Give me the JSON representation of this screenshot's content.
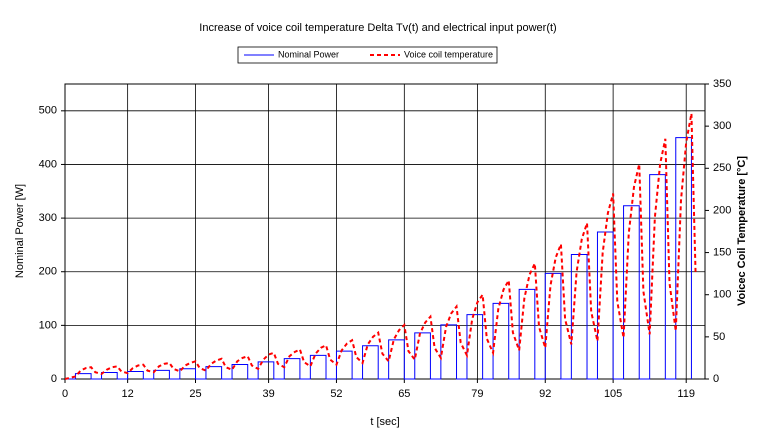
{
  "chart_data": {
    "type": "line",
    "title": "Increase of voice coil temperature Delta Tv(t) and electrical input power(t)",
    "xlabel": "t [sec]",
    "ylabel": "Nominal Power [W]",
    "y2label": "Voicec Coil Temperature [°C]",
    "xlim": [
      0,
      122.6
    ],
    "xticks": [
      0,
      12,
      25,
      39,
      52,
      65,
      79,
      92,
      105,
      119
    ],
    "ylim": [
      0,
      550
    ],
    "yticks": [
      0,
      100,
      200,
      300,
      400,
      500
    ],
    "y2lim": [
      0,
      350
    ],
    "y2ticks": [
      0,
      50,
      100,
      150,
      200,
      250,
      300,
      350
    ],
    "grid": true,
    "legend": "top",
    "series": [
      {
        "name": "Nominal Power",
        "color": "#0000ff",
        "dash": "solid",
        "x": [
          0,
          2,
          2,
          5,
          5,
          7,
          7,
          10,
          10,
          12,
          12,
          15,
          15,
          17,
          17,
          20,
          20,
          22,
          22,
          25,
          25,
          27,
          27,
          30,
          30,
          32,
          32,
          35,
          35,
          37,
          37,
          40,
          40,
          42,
          42,
          45,
          45,
          47,
          47,
          50,
          50,
          52,
          52,
          55,
          55,
          57,
          57,
          60,
          60,
          62,
          62,
          65,
          65,
          67,
          67,
          70,
          70,
          72,
          72,
          75,
          75,
          77,
          77,
          80,
          80,
          82,
          82,
          85,
          85,
          87,
          87,
          90,
          90,
          92,
          92,
          95,
          95,
          97,
          97,
          100,
          100,
          102,
          102,
          105,
          105,
          107,
          107,
          110,
          110,
          112,
          112,
          115,
          115,
          117,
          117,
          120,
          120
        ],
        "values": [
          0,
          0,
          10,
          10,
          0,
          0,
          12,
          12,
          0,
          0,
          14,
          14,
          0,
          0,
          16,
          16,
          0,
          0,
          19,
          19,
          0,
          0,
          23,
          23,
          0,
          0,
          27,
          27,
          0,
          0,
          32,
          32,
          0,
          0,
          38,
          38,
          0,
          0,
          44,
          44,
          0,
          0,
          52,
          52,
          0,
          0,
          62,
          62,
          0,
          0,
          73,
          73,
          0,
          0,
          86,
          86,
          0,
          0,
          101,
          101,
          0,
          0,
          120,
          120,
          0,
          0,
          141,
          141,
          0,
          0,
          167,
          167,
          0,
          0,
          197,
          197,
          0,
          0,
          232,
          232,
          0,
          0,
          274,
          274,
          0,
          0,
          323,
          323,
          0,
          0,
          381,
          381,
          0,
          0,
          450,
          450,
          0
        ]
      },
      {
        "name": "Voice coil temperature",
        "color": "#ff0000",
        "dash": "dotted",
        "axis": "y2",
        "x": [
          0,
          2,
          3,
          4,
          5,
          5.8,
          7,
          8,
          9,
          10,
          10.8,
          12,
          13,
          14,
          15,
          15.8,
          17,
          18,
          19,
          20,
          20.8,
          22,
          23,
          24,
          25,
          25.8,
          27,
          28,
          29,
          30,
          30.8,
          32,
          33,
          34,
          35,
          35.8,
          37,
          38,
          39,
          40,
          40.8,
          42,
          43,
          44,
          45,
          45.8,
          47,
          48,
          49,
          50,
          50.8,
          52,
          53,
          54,
          55,
          55.8,
          57,
          58,
          59,
          60,
          60.8,
          62,
          63,
          64,
          65,
          65.8,
          67,
          68,
          69,
          70,
          70.8,
          72,
          73,
          74,
          75,
          75.8,
          77,
          78,
          79,
          80,
          80.8,
          82,
          83,
          84,
          85,
          85.8,
          87,
          88,
          89,
          90,
          90.8,
          92,
          93,
          94,
          95,
          95.8,
          97,
          98,
          99,
          100,
          100.8,
          102,
          103,
          104,
          105,
          105.8,
          107,
          108,
          109,
          110,
          110.8,
          112,
          113,
          114,
          115,
          115.8,
          117,
          118,
          119,
          120,
          120.8
        ],
        "values": [
          0,
          3,
          10,
          13,
          14,
          8,
          6,
          11,
          14,
          15,
          9,
          7,
          13,
          16,
          17,
          10,
          8,
          15,
          18,
          19,
          12,
          9,
          16,
          19,
          21,
          13,
          10,
          18,
          22,
          24,
          14,
          11,
          21,
          25,
          27,
          16,
          12,
          23,
          29,
          31,
          18,
          14,
          27,
          32,
          35,
          20,
          15,
          30,
          37,
          40,
          23,
          17,
          34,
          42,
          46,
          26,
          19,
          41,
          50,
          55,
          30,
          21,
          47,
          58,
          64,
          33,
          23,
          54,
          67,
          74,
          37,
          25,
          62,
          78,
          86,
          43,
          28,
          71,
          91,
          100,
          48,
          31,
          83,
          106,
          117,
          55,
          34,
          96,
          124,
          137,
          62,
          37,
          111,
          144,
          160,
          71,
          41,
          127,
          166,
          185,
          80,
          45,
          150,
          197,
          220,
          92,
          49,
          173,
          228,
          255,
          104,
          53,
          192,
          255,
          285,
          114,
          57,
          212,
          281,
          315,
          124
        ]
      }
    ]
  }
}
